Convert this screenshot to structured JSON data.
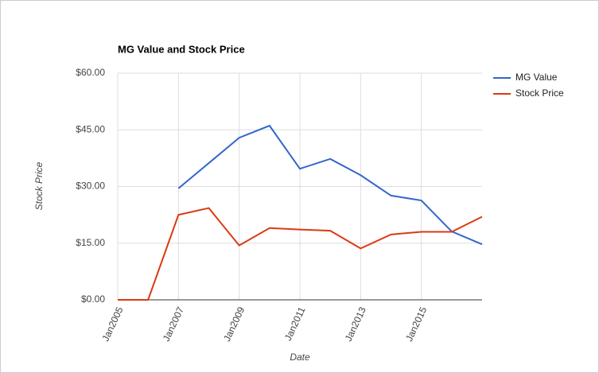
{
  "chart_data": {
    "type": "line",
    "title": "MG Value and Stock Price",
    "x_label": "Date",
    "y_label": "Stock Price",
    "x": [
      2005,
      2006,
      2007,
      2008,
      2009,
      2010,
      2011,
      2012,
      2013,
      2014,
      2015,
      2016,
      2017
    ],
    "series": [
      {
        "name": "MG Value",
        "color": "#3366cc",
        "values": [
          null,
          null,
          29.5,
          36.2,
          42.9,
          46.1,
          34.7,
          37.3,
          33.0,
          27.6,
          26.3,
          18.1,
          14.7
        ]
      },
      {
        "name": "Stock Price",
        "color": "#dc3912",
        "values": [
          0,
          0,
          22.5,
          24.3,
          14.4,
          19.0,
          18.6,
          18.3,
          13.6,
          17.3,
          18.0,
          18.0,
          22.0
        ]
      }
    ],
    "xlim": [
      2005,
      2017
    ],
    "xticks": [
      {
        "value": 2005,
        "label": "Jan2005"
      },
      {
        "value": 2007,
        "label": "Jan2007"
      },
      {
        "value": 2009,
        "label": "Jan2009"
      },
      {
        "value": 2011,
        "label": "Jan2011"
      },
      {
        "value": 2013,
        "label": "Jan2013"
      },
      {
        "value": 2015,
        "label": "Jan2015"
      }
    ],
    "ylim": [
      0,
      60
    ],
    "yticks": [
      {
        "value": 0,
        "label": "$0.00"
      },
      {
        "value": 15,
        "label": "$15.00"
      },
      {
        "value": 30,
        "label": "$30.00"
      },
      {
        "value": 45,
        "label": "$45.00"
      },
      {
        "value": 60,
        "label": "$60.00"
      }
    ],
    "grid": true,
    "legend": "right"
  }
}
